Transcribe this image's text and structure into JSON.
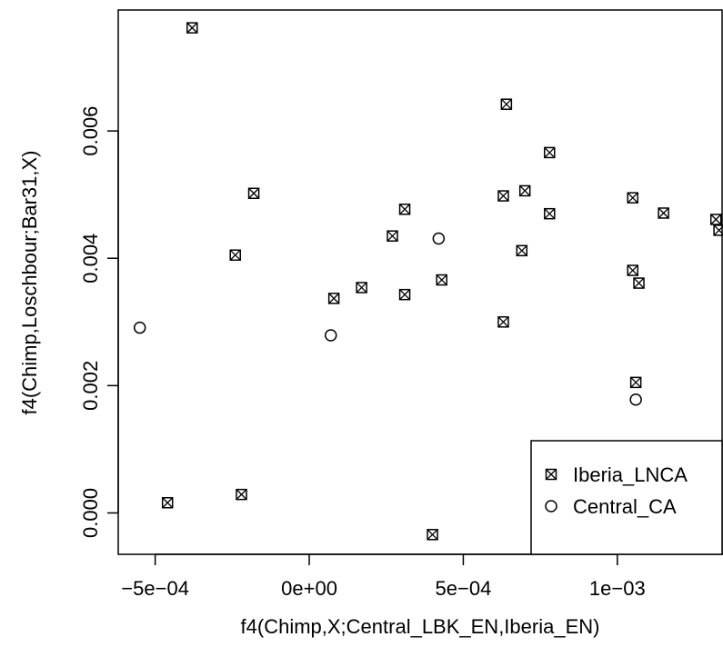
{
  "chart_data": {
    "type": "scatter",
    "title": "",
    "xlabel": "f4(Chimp,X;Central_LBK_EN,Iberia_EN)",
    "ylabel": "f4(Chimp,Loschbour;Bar31,X)",
    "xlim": [
      -0.00062,
      0.00134
    ],
    "ylim": [
      -0.00065,
      0.0079
    ],
    "xticks": [
      {
        "value": -0.0005,
        "label": "−5e−04"
      },
      {
        "value": 0.0,
        "label": "0e+00"
      },
      {
        "value": 0.0005,
        "label": "5e−04"
      },
      {
        "value": 0.001,
        "label": "1e−03"
      }
    ],
    "yticks": [
      {
        "value": 0.0,
        "label": "0.000"
      },
      {
        "value": 0.002,
        "label": "0.002"
      },
      {
        "value": 0.004,
        "label": "0.004"
      },
      {
        "value": 0.006,
        "label": "0.006"
      }
    ],
    "grid": false,
    "legend_position": "bottom-right",
    "series": [
      {
        "name": "Iberia_LNCA",
        "marker": "boxed-x",
        "points": [
          {
            "x": -0.00038,
            "y": 0.00762
          },
          {
            "x": 0.00064,
            "y": 0.00642
          },
          {
            "x": 0.00078,
            "y": 0.00566
          },
          {
            "x": 0.0007,
            "y": 0.00506
          },
          {
            "x": -0.00018,
            "y": 0.00502
          },
          {
            "x": 0.00063,
            "y": 0.00498
          },
          {
            "x": 0.00105,
            "y": 0.00495
          },
          {
            "x": 0.00031,
            "y": 0.00477
          },
          {
            "x": 0.00115,
            "y": 0.00471
          },
          {
            "x": 0.00078,
            "y": 0.0047
          },
          {
            "x": 0.00132,
            "y": 0.00461
          },
          {
            "x": 0.00133,
            "y": 0.00444
          },
          {
            "x": 0.00027,
            "y": 0.00435
          },
          {
            "x": 0.00069,
            "y": 0.00412
          },
          {
            "x": -0.00024,
            "y": 0.00405
          },
          {
            "x": 0.00105,
            "y": 0.00381
          },
          {
            "x": 0.00043,
            "y": 0.00366
          },
          {
            "x": 0.00107,
            "y": 0.00361
          },
          {
            "x": 0.00017,
            "y": 0.00354
          },
          {
            "x": 0.00031,
            "y": 0.00343
          },
          {
            "x": 8e-05,
            "y": 0.00337
          },
          {
            "x": 0.00063,
            "y": 0.003
          },
          {
            "x": 0.00106,
            "y": 0.00205
          },
          {
            "x": -0.00022,
            "y": 0.00029
          },
          {
            "x": -0.00046,
            "y": 0.00016
          },
          {
            "x": 0.0004,
            "y": -0.00034
          }
        ]
      },
      {
        "name": "Central_CA",
        "marker": "circle",
        "points": [
          {
            "x": 0.00042,
            "y": 0.00431
          },
          {
            "x": -0.00055,
            "y": 0.00291
          },
          {
            "x": 7e-05,
            "y": 0.00279
          },
          {
            "x": 0.00106,
            "y": 0.00178
          }
        ]
      }
    ]
  }
}
